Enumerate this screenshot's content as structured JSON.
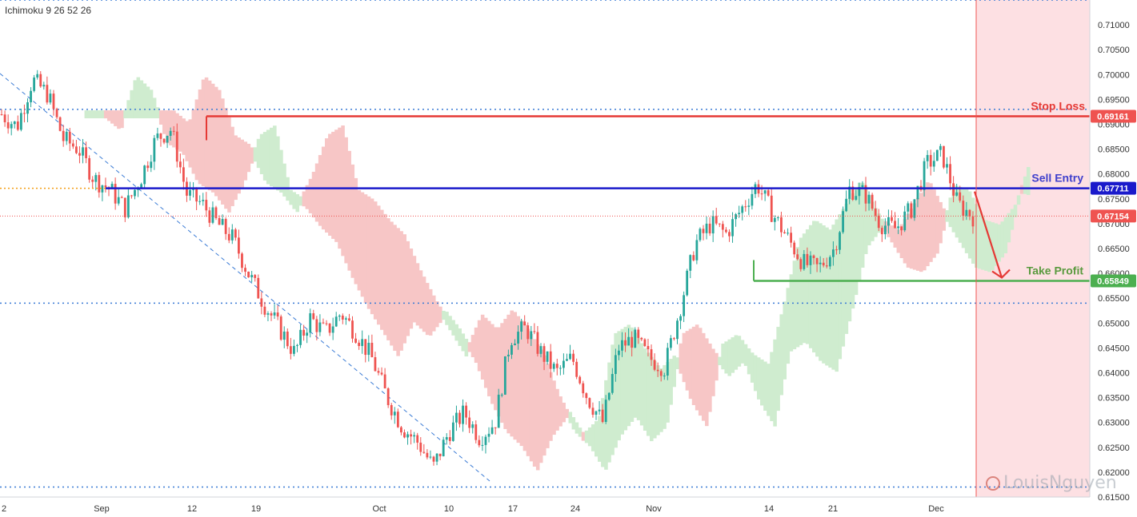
{
  "indicator_label": "Ichimoku 9 26 52 26",
  "watermark": "LouisNguyen",
  "colors": {
    "bull": "#26a69a",
    "bear": "#ef5350",
    "stop_loss": "#e53935",
    "sell_entry": "#1a1acb",
    "take_profit": "#4caf50",
    "cloud_bear": "#f7c6c6",
    "cloud_bull": "#cfeccf",
    "zone": "#fde0e3",
    "dotted": "#3a7bd5",
    "price_tag": "#ef5350"
  },
  "chart_data": {
    "type": "candlestick",
    "ylim": [
      0.615,
      0.715
    ],
    "x_ticks": [
      "2",
      "Sep",
      "12",
      "19",
      "Oct",
      "10",
      "17",
      "24",
      "Nov",
      "14",
      "21",
      "Dec"
    ],
    "y_ticks": [
      "0.71000",
      "0.70500",
      "0.70000",
      "0.69500",
      "0.69000",
      "0.68500",
      "0.68000",
      "0.67500",
      "0.67000",
      "0.66500",
      "0.66000",
      "0.65500",
      "0.65000",
      "0.64500",
      "0.64000",
      "0.63500",
      "0.63000",
      "0.62500",
      "0.62000",
      "0.61500"
    ],
    "levels": {
      "stop_loss": {
        "label": "Stop Loss",
        "value": 0.69161,
        "tag": "0.69161"
      },
      "sell_entry": {
        "label": "Sell Entry",
        "value": 0.67711,
        "tag": "0.67711"
      },
      "take_profit": {
        "label": "Take Profit",
        "value": 0.65849,
        "tag": "0.65849"
      },
      "last_price": {
        "value": 0.67154,
        "tag": "0.67154"
      }
    },
    "horizontal_dotted": [
      0.715,
      0.693,
      0.654,
      0.617
    ],
    "close_path": [
      0.692,
      0.6895,
      0.699,
      0.696,
      0.687,
      0.685,
      0.679,
      0.677,
      0.673,
      0.679,
      0.687,
      0.689,
      0.676,
      0.674,
      0.67,
      0.667,
      0.66,
      0.654,
      0.649,
      0.644,
      0.651,
      0.648,
      0.652,
      0.648,
      0.643,
      0.635,
      0.629,
      0.626,
      0.621,
      0.628,
      0.632,
      0.627,
      0.63,
      0.647,
      0.649,
      0.644,
      0.64,
      0.643,
      0.635,
      0.63,
      0.645,
      0.647,
      0.643,
      0.641,
      0.653,
      0.666,
      0.67,
      0.668,
      0.673,
      0.678,
      0.672,
      0.667,
      0.662,
      0.661,
      0.665,
      0.677,
      0.676,
      0.67,
      0.669,
      0.673,
      0.682,
      0.684,
      0.674,
      0.6715
    ]
  }
}
